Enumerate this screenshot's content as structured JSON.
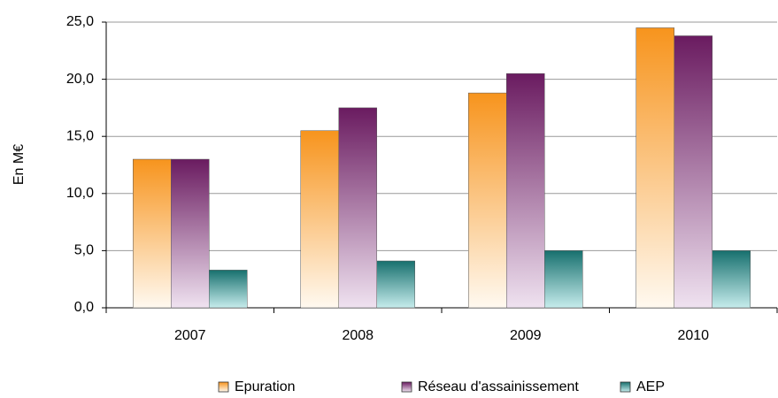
{
  "chart_data": {
    "type": "bar",
    "y_label": "En M€",
    "categories": [
      "2007",
      "2008",
      "2009",
      "2010"
    ],
    "series": [
      {
        "name": "Epuration",
        "color": "#f7941d",
        "values": [
          13.0,
          15.5,
          18.8,
          24.5
        ]
      },
      {
        "name": "Réseau d'assainissement",
        "color": "#6a1b60",
        "values": [
          13.0,
          17.5,
          20.5,
          23.8
        ]
      },
      {
        "name": "AEP",
        "color": "#17706e",
        "values": [
          3.3,
          4.1,
          5.0,
          5.0
        ]
      }
    ],
    "ylim": [
      0,
      25
    ],
    "yticks": [
      {
        "value": 0,
        "label": "0,0"
      },
      {
        "value": 5,
        "label": "5,0"
      },
      {
        "value": 10,
        "label": "10,0"
      },
      {
        "value": 15,
        "label": "15,0"
      },
      {
        "value": 20,
        "label": "20,0"
      },
      {
        "value": 25,
        "label": "25,0"
      }
    ],
    "grid": true,
    "legend": "bottom"
  }
}
